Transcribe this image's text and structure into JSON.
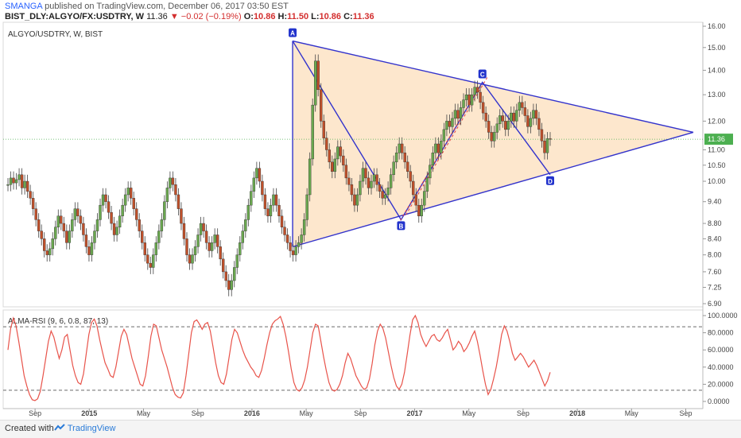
{
  "header": {
    "author": "SMANGA",
    "published_text": "published on TradingView.com, December 06, 2017 03:50 EST",
    "symbol": "BIST_DLY:ALGYO/FX:USDTRY, W",
    "last": "11.36",
    "arrow": "▼",
    "change": "−0.02 (−0.19%)",
    "o_label": "O:",
    "o": "10.86",
    "h_label": "H:",
    "h": "11.50",
    "l_label": "L:",
    "l": "10.86",
    "c_label": "C:",
    "c": "11.36"
  },
  "footer": {
    "created_with": "Created with",
    "brand": "TradingView"
  },
  "colors": {
    "up": "#6aa84f",
    "down": "#c0502a",
    "pattern_line": "#3333cc",
    "pattern_fill": "#fde3c4",
    "rsi_line": "#e8534a",
    "price_line": "#4caf50"
  },
  "chart_data": [
    {
      "type": "candlestick",
      "title": "ALGYO/USDTRY, W, BIST",
      "last_price_label": "11.36",
      "y_axis_ticks": [
        "16.00",
        "15.00",
        "14.00",
        "13.00",
        "12.00",
        "11.00",
        "10.50",
        "10.00",
        "9.40",
        "8.80",
        "8.40",
        "8.00",
        "7.60",
        "7.25",
        "6.90"
      ],
      "x_axis_ticks": [
        "Sep",
        "2015",
        "May",
        "Sep",
        "2016",
        "May",
        "Sep",
        "2017",
        "May",
        "Sep",
        "2018",
        "May",
        "Sep"
      ],
      "date_range": [
        "2014-07",
        "2017-11"
      ],
      "closes": [
        9.9,
        10.1,
        9.95,
        10.05,
        10.2,
        9.8,
        10.0,
        9.7,
        9.5,
        9.2,
        8.9,
        8.6,
        8.4,
        8.1,
        8.0,
        8.15,
        8.4,
        8.7,
        9.0,
        8.8,
        8.6,
        8.3,
        8.6,
        8.9,
        9.2,
        9.0,
        8.8,
        8.5,
        8.2,
        8.0,
        8.3,
        8.6,
        8.9,
        9.3,
        9.6,
        9.4,
        9.1,
        8.8,
        8.5,
        8.7,
        9.0,
        9.3,
        9.6,
        9.8,
        9.5,
        9.2,
        8.9,
        8.6,
        8.3,
        8.0,
        7.8,
        7.7,
        8.0,
        8.3,
        8.6,
        8.9,
        9.4,
        9.8,
        10.1,
        9.9,
        9.6,
        9.2,
        8.8,
        8.4,
        8.0,
        7.8,
        8.0,
        8.2,
        8.5,
        8.8,
        8.6,
        8.3,
        8.1,
        8.3,
        8.5,
        8.2,
        7.9,
        7.6,
        7.4,
        7.2,
        7.4,
        7.7,
        8.0,
        8.3,
        8.6,
        8.9,
        9.3,
        9.7,
        10.1,
        10.4,
        10.0,
        9.6,
        9.2,
        9.0,
        9.3,
        9.6,
        9.3,
        9.0,
        8.7,
        8.5,
        8.3,
        8.1,
        8.0,
        8.2,
        8.3,
        8.5,
        8.9,
        9.6,
        10.7,
        12.6,
        14.4,
        13.2,
        12.0,
        11.4,
        11.0,
        10.6,
        10.3,
        10.7,
        11.1,
        10.8,
        10.5,
        10.1,
        9.9,
        9.6,
        9.3,
        9.6,
        10.0,
        10.4,
        10.1,
        9.8,
        10.0,
        10.2,
        9.9,
        9.7,
        9.5,
        9.6,
        9.8,
        10.2,
        10.6,
        10.9,
        11.2,
        10.9,
        10.6,
        10.3,
        10.0,
        9.6,
        9.3,
        9.0,
        9.3,
        9.7,
        10.1,
        10.5,
        10.9,
        11.2,
        10.9,
        11.3,
        11.7,
        12.0,
        11.8,
        12.1,
        12.4,
        12.1,
        12.5,
        12.8,
        13.0,
        12.6,
        13.0,
        13.3,
        13.1,
        12.7,
        12.3,
        12.0,
        11.6,
        11.3,
        11.6,
        11.9,
        12.2,
        12.0,
        11.7,
        12.0,
        12.3,
        12.0,
        12.4,
        12.7,
        12.5,
        12.2,
        11.8,
        12.1,
        12.4,
        12.1,
        11.7,
        11.3,
        10.9,
        11.38,
        11.36
      ],
      "levels": {
        "pattern_A": 15.3,
        "pattern_B": 8.9,
        "pattern_C": 13.5,
        "pattern_D": 10.2
      },
      "pattern_points": [
        {
          "label": "A",
          "date": "2016-04",
          "value": 15.3
        },
        {
          "label": "B",
          "date": "2016-12",
          "value": 8.9
        },
        {
          "label": "C",
          "date": "2017-06",
          "value": 13.5
        },
        {
          "label": "D",
          "date": "2017-11",
          "value": 10.2
        }
      ]
    },
    {
      "type": "line",
      "title": "ALMA-RSI (9, 6, 0.8, 87, 13)",
      "ylim": [
        0,
        100
      ],
      "y_axis_ticks": [
        "100.0000",
        "80.0000",
        "60.0000",
        "40.0000",
        "20.0000",
        "0.0000"
      ],
      "upper_band": 87,
      "lower_band": 13,
      "values": [
        60,
        85,
        97,
        88,
        70,
        50,
        30,
        18,
        8,
        2,
        1,
        3,
        12,
        30,
        50,
        70,
        82,
        75,
        62,
        50,
        60,
        75,
        78,
        60,
        42,
        30,
        22,
        20,
        32,
        55,
        78,
        92,
        96,
        88,
        72,
        58,
        45,
        38,
        30,
        28,
        40,
        58,
        76,
        84,
        78,
        64,
        50,
        40,
        30,
        20,
        18,
        30,
        52,
        76,
        90,
        88,
        74,
        60,
        50,
        40,
        28,
        16,
        8,
        5,
        4,
        10,
        30,
        55,
        80,
        93,
        95,
        90,
        84,
        90,
        92,
        82,
        64,
        45,
        30,
        22,
        20,
        32,
        52,
        72,
        84,
        80,
        70,
        60,
        52,
        46,
        40,
        36,
        30,
        28,
        36,
        50,
        66,
        80,
        90,
        94,
        96,
        99,
        90,
        76,
        58,
        38,
        22,
        14,
        12,
        16,
        25,
        40,
        60,
        80,
        90,
        88,
        70,
        52,
        36,
        22,
        14,
        12,
        14,
        20,
        30,
        45,
        56,
        50,
        40,
        30,
        24,
        18,
        14,
        16,
        26,
        44,
        66,
        82,
        90,
        85,
        74,
        58,
        42,
        28,
        18,
        14,
        20,
        34,
        55,
        77,
        95,
        100,
        92,
        78,
        70,
        64,
        70,
        76,
        78,
        72,
        70,
        74,
        80,
        84,
        72,
        60,
        64,
        70,
        66,
        58,
        62,
        68,
        76,
        82,
        70,
        54,
        36,
        20,
        8,
        14,
        26,
        40,
        58,
        78,
        88,
        82,
        70,
        56,
        48,
        52,
        56,
        52,
        46,
        40,
        44,
        48,
        42,
        34,
        26,
        18,
        24,
        34
      ]
    }
  ]
}
